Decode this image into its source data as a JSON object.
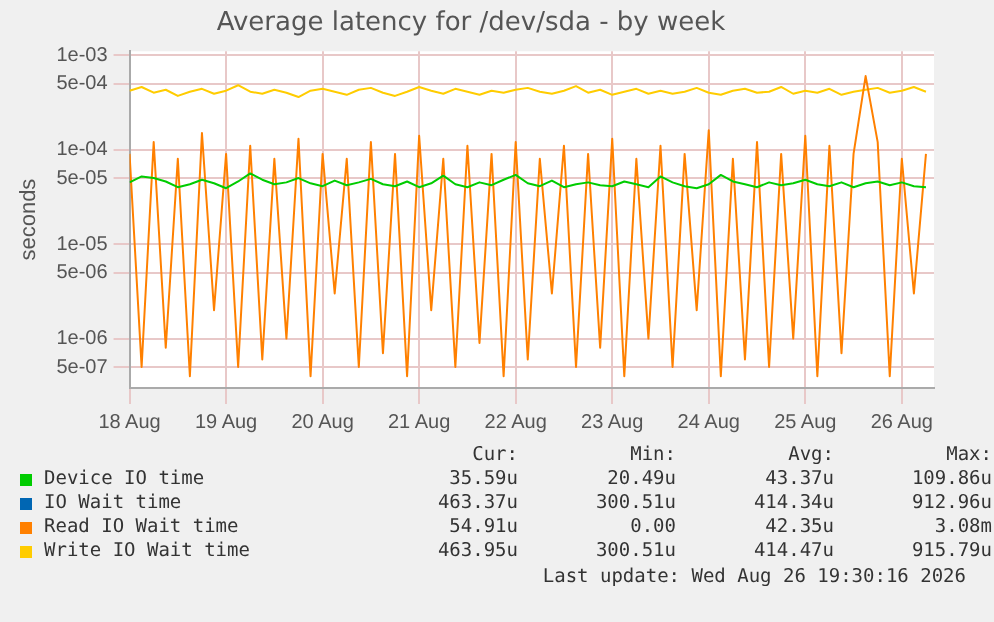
{
  "chart_data": {
    "type": "line",
    "title": "Average latency for /dev/sda - by week",
    "ylabel": "seconds",
    "log": "y",
    "grid": true,
    "legend": "bottom",
    "xlim": [
      "2026-08-18T00:00",
      "2026-08-26T08:00"
    ],
    "xticks": [
      {
        "value": "2026-08-18",
        "label": "18 Aug"
      },
      {
        "value": "2026-08-19",
        "label": "19 Aug"
      },
      {
        "value": "2026-08-20",
        "label": "20 Aug"
      },
      {
        "value": "2026-08-21",
        "label": "21 Aug"
      },
      {
        "value": "2026-08-22",
        "label": "22 Aug"
      },
      {
        "value": "2026-08-23",
        "label": "23 Aug"
      },
      {
        "value": "2026-08-24",
        "label": "24 Aug"
      },
      {
        "value": "2026-08-25",
        "label": "25 Aug"
      },
      {
        "value": "2026-08-26",
        "label": "26 Aug"
      }
    ],
    "ylim": [
      3e-07,
      0.0011
    ],
    "yticks": [
      {
        "value": 5e-07,
        "label": "5e-07"
      },
      {
        "value": 1e-06,
        "label": "1e-06"
      },
      {
        "value": 5e-06,
        "label": "5e-06"
      },
      {
        "value": 1e-05,
        "label": "1e-05"
      },
      {
        "value": 5e-05,
        "label": "5e-05"
      },
      {
        "value": 0.0001,
        "label": "1e-04"
      },
      {
        "value": 0.0005,
        "label": "5e-04"
      },
      {
        "value": 0.001,
        "label": "1e-03"
      }
    ],
    "x": [
      "2026-08-18T00:00",
      "2026-08-18T03:00",
      "2026-08-18T06:00",
      "2026-08-18T09:00",
      "2026-08-18T12:00",
      "2026-08-18T15:00",
      "2026-08-18T18:00",
      "2026-08-18T21:00",
      "2026-08-19T00:00",
      "2026-08-19T03:00",
      "2026-08-19T06:00",
      "2026-08-19T09:00",
      "2026-08-19T12:00",
      "2026-08-19T15:00",
      "2026-08-19T18:00",
      "2026-08-19T21:00",
      "2026-08-20T00:00",
      "2026-08-20T03:00",
      "2026-08-20T06:00",
      "2026-08-20T09:00",
      "2026-08-20T12:00",
      "2026-08-20T15:00",
      "2026-08-20T18:00",
      "2026-08-20T21:00",
      "2026-08-21T00:00",
      "2026-08-21T03:00",
      "2026-08-21T06:00",
      "2026-08-21T09:00",
      "2026-08-21T12:00",
      "2026-08-21T15:00",
      "2026-08-21T18:00",
      "2026-08-21T21:00",
      "2026-08-22T00:00",
      "2026-08-22T03:00",
      "2026-08-22T06:00",
      "2026-08-22T09:00",
      "2026-08-22T12:00",
      "2026-08-22T15:00",
      "2026-08-22T18:00",
      "2026-08-22T21:00",
      "2026-08-23T00:00",
      "2026-08-23T03:00",
      "2026-08-23T06:00",
      "2026-08-23T09:00",
      "2026-08-23T12:00",
      "2026-08-23T15:00",
      "2026-08-23T18:00",
      "2026-08-23T21:00",
      "2026-08-24T00:00",
      "2026-08-24T03:00",
      "2026-08-24T06:00",
      "2026-08-24T09:00",
      "2026-08-24T12:00",
      "2026-08-24T15:00",
      "2026-08-24T18:00",
      "2026-08-24T21:00",
      "2026-08-25T00:00",
      "2026-08-25T03:00",
      "2026-08-25T06:00",
      "2026-08-25T09:00",
      "2026-08-25T12:00",
      "2026-08-25T15:00",
      "2026-08-25T18:00",
      "2026-08-25T21:00",
      "2026-08-26T00:00",
      "2026-08-26T03:00",
      "2026-08-26T06:00"
    ],
    "series": [
      {
        "name": "Device IO time",
        "color": "#00cc00",
        "values": [
          4.5e-05,
          5.2e-05,
          5e-05,
          4.6e-05,
          4e-05,
          4.3e-05,
          4.8e-05,
          4.4e-05,
          3.9e-05,
          4.6e-05,
          5.6e-05,
          4.8e-05,
          4.3e-05,
          4.5e-05,
          5e-05,
          4.4e-05,
          4.1e-05,
          4.7e-05,
          4.2e-05,
          4.5e-05,
          4.9e-05,
          4.3e-05,
          4.1e-05,
          4.6e-05,
          4e-05,
          4.4e-05,
          5.3e-05,
          4.3e-05,
          4e-05,
          4.5e-05,
          4.2e-05,
          4.8e-05,
          5.4e-05,
          4.4e-05,
          4.1e-05,
          4.7e-05,
          4e-05,
          4.3e-05,
          4.5e-05,
          4.2e-05,
          4.1e-05,
          4.6e-05,
          4.3e-05,
          4e-05,
          5.2e-05,
          4.5e-05,
          4.1e-05,
          3.9e-05,
          4.3e-05,
          5.4e-05,
          4.6e-05,
          4.3e-05,
          4e-05,
          4.5e-05,
          4.2e-05,
          4.4e-05,
          4.8e-05,
          4.3e-05,
          4.1e-05,
          4.5e-05,
          4e-05,
          4.4e-05,
          4.6e-05,
          4.2e-05,
          4.5e-05,
          4.1e-05,
          4e-05
        ]
      },
      {
        "name": "IO Wait time",
        "color": "#0066b3",
        "values": [
          null,
          null,
          null,
          null,
          null,
          null,
          null,
          null,
          null,
          null,
          null,
          null,
          null,
          null,
          null,
          null,
          null,
          null,
          null,
          null,
          null,
          null,
          null,
          null,
          null,
          null,
          null,
          null,
          null,
          null,
          null,
          null,
          null,
          null,
          null,
          null,
          null,
          null,
          null,
          null,
          null,
          null,
          null,
          null,
          null,
          null,
          null,
          null,
          null,
          null,
          null,
          null,
          null,
          null,
          null,
          null,
          null,
          null,
          null,
          null,
          null,
          null,
          null,
          null,
          null,
          null,
          null
        ]
      },
      {
        "name": "Read IO Wait time",
        "color": "#ff8000",
        "values": [
          9e-05,
          5e-07,
          0.00012,
          8e-07,
          8e-05,
          4e-07,
          0.00015,
          2e-06,
          9e-05,
          5e-07,
          0.00011,
          6e-07,
          8e-05,
          1e-06,
          0.00013,
          4e-07,
          9e-05,
          3e-06,
          8e-05,
          5e-07,
          0.00012,
          7e-07,
          9e-05,
          4e-07,
          0.00014,
          2e-06,
          8e-05,
          5e-07,
          0.00011,
          9e-07,
          9e-05,
          4e-07,
          0.00012,
          6e-07,
          8e-05,
          3e-06,
          0.00011,
          5e-07,
          9e-05,
          8e-07,
          0.00013,
          4e-07,
          8e-05,
          1e-06,
          0.00011,
          5e-07,
          9e-05,
          2e-06,
          0.00016,
          4e-07,
          8e-05,
          6e-07,
          0.00012,
          5e-07,
          9e-05,
          1e-06,
          0.00014,
          4e-07,
          0.00011,
          7e-07,
          9e-05,
          0.0006,
          0.00012,
          4e-07,
          8e-05,
          3e-06,
          9e-05
        ]
      },
      {
        "name": "Write IO Wait time",
        "color": "#ffcc00",
        "values": [
          0.00042,
          0.00046,
          0.0004,
          0.00043,
          0.00037,
          0.00041,
          0.00044,
          0.00039,
          0.00042,
          0.00048,
          0.00041,
          0.00039,
          0.00043,
          0.0004,
          0.00036,
          0.00042,
          0.00044,
          0.00041,
          0.00038,
          0.00043,
          0.00045,
          0.0004,
          0.00037,
          0.00041,
          0.00046,
          0.00042,
          0.00039,
          0.00044,
          0.00041,
          0.00038,
          0.00042,
          0.0004,
          0.00043,
          0.00045,
          0.00041,
          0.00039,
          0.00042,
          0.00047,
          0.0004,
          0.00043,
          0.00038,
          0.00041,
          0.00044,
          0.00039,
          0.00042,
          0.00039,
          0.00041,
          0.00045,
          0.0004,
          0.00038,
          0.00042,
          0.00044,
          0.0004,
          0.00041,
          0.00046,
          0.00039,
          0.00042,
          0.0004,
          0.00044,
          0.00038,
          0.00041,
          0.00043,
          0.00045,
          0.0004,
          0.00042,
          0.00046,
          0.00041
        ]
      }
    ],
    "annotations": [
      "Cur:",
      "Min:",
      "Avg:",
      "Max:",
      "35.59u",
      "20.49u",
      "43.37u",
      "109.86u",
      "463.37u",
      "300.51u",
      "414.34u",
      "912.96u",
      "54.91u",
      "0.00",
      "42.35u",
      "3.08m",
      "463.95u",
      "300.51u",
      "414.47u",
      "915.79u",
      "Last update: Wed Aug 26 19:30:16 2026"
    ]
  }
}
